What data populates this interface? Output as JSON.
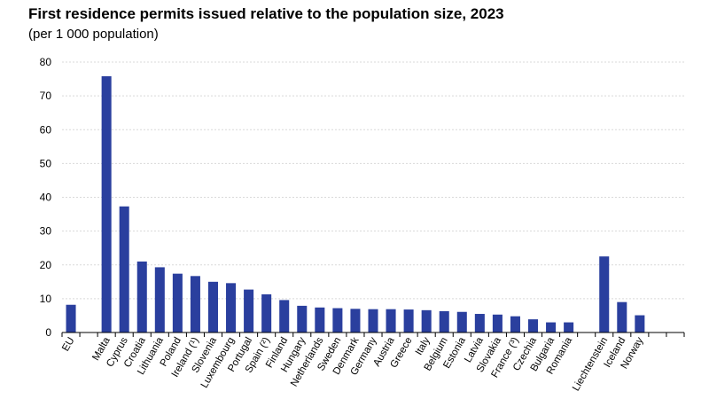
{
  "chart_data": {
    "type": "bar",
    "title": "First residence permits issued relative to the population size, 2023",
    "subtitle": "(per 1 000 population)",
    "xlabel": "",
    "ylabel": "",
    "ylim": [
      0,
      80
    ],
    "yticks": [
      0,
      10,
      20,
      30,
      40,
      50,
      60,
      70,
      80
    ],
    "grid": true,
    "bar_color": "#2a3f9e",
    "categories": [
      "EU",
      "",
      "Malta",
      "Cyprus",
      "Croatia",
      "Lithuania",
      "Poland",
      "Ireland (¹)",
      "Slovenia",
      "Luxembourg",
      "Portugal",
      "Spain (²)",
      "Finland",
      "Hungary",
      "Netherlands",
      "Sweden",
      "Denmark",
      "Germany",
      "Austria",
      "Greece",
      "Italy",
      "Belgium",
      "Estonia",
      "Latvia",
      "Slovakia",
      "France (³)",
      "Czechia",
      "Bulgaria",
      "Romania",
      "",
      "Liechtenstein",
      "Iceland",
      "Norway",
      "",
      ""
    ],
    "values": [
      8.2,
      null,
      75.8,
      37.3,
      21.0,
      19.3,
      17.4,
      16.7,
      15.0,
      14.6,
      12.7,
      11.3,
      9.6,
      7.9,
      7.4,
      7.2,
      7.0,
      6.9,
      6.9,
      6.8,
      6.6,
      6.3,
      6.1,
      5.5,
      5.3,
      4.8,
      3.9,
      3.0,
      3.0,
      null,
      22.5,
      9.0,
      5.1,
      null,
      null
    ]
  }
}
